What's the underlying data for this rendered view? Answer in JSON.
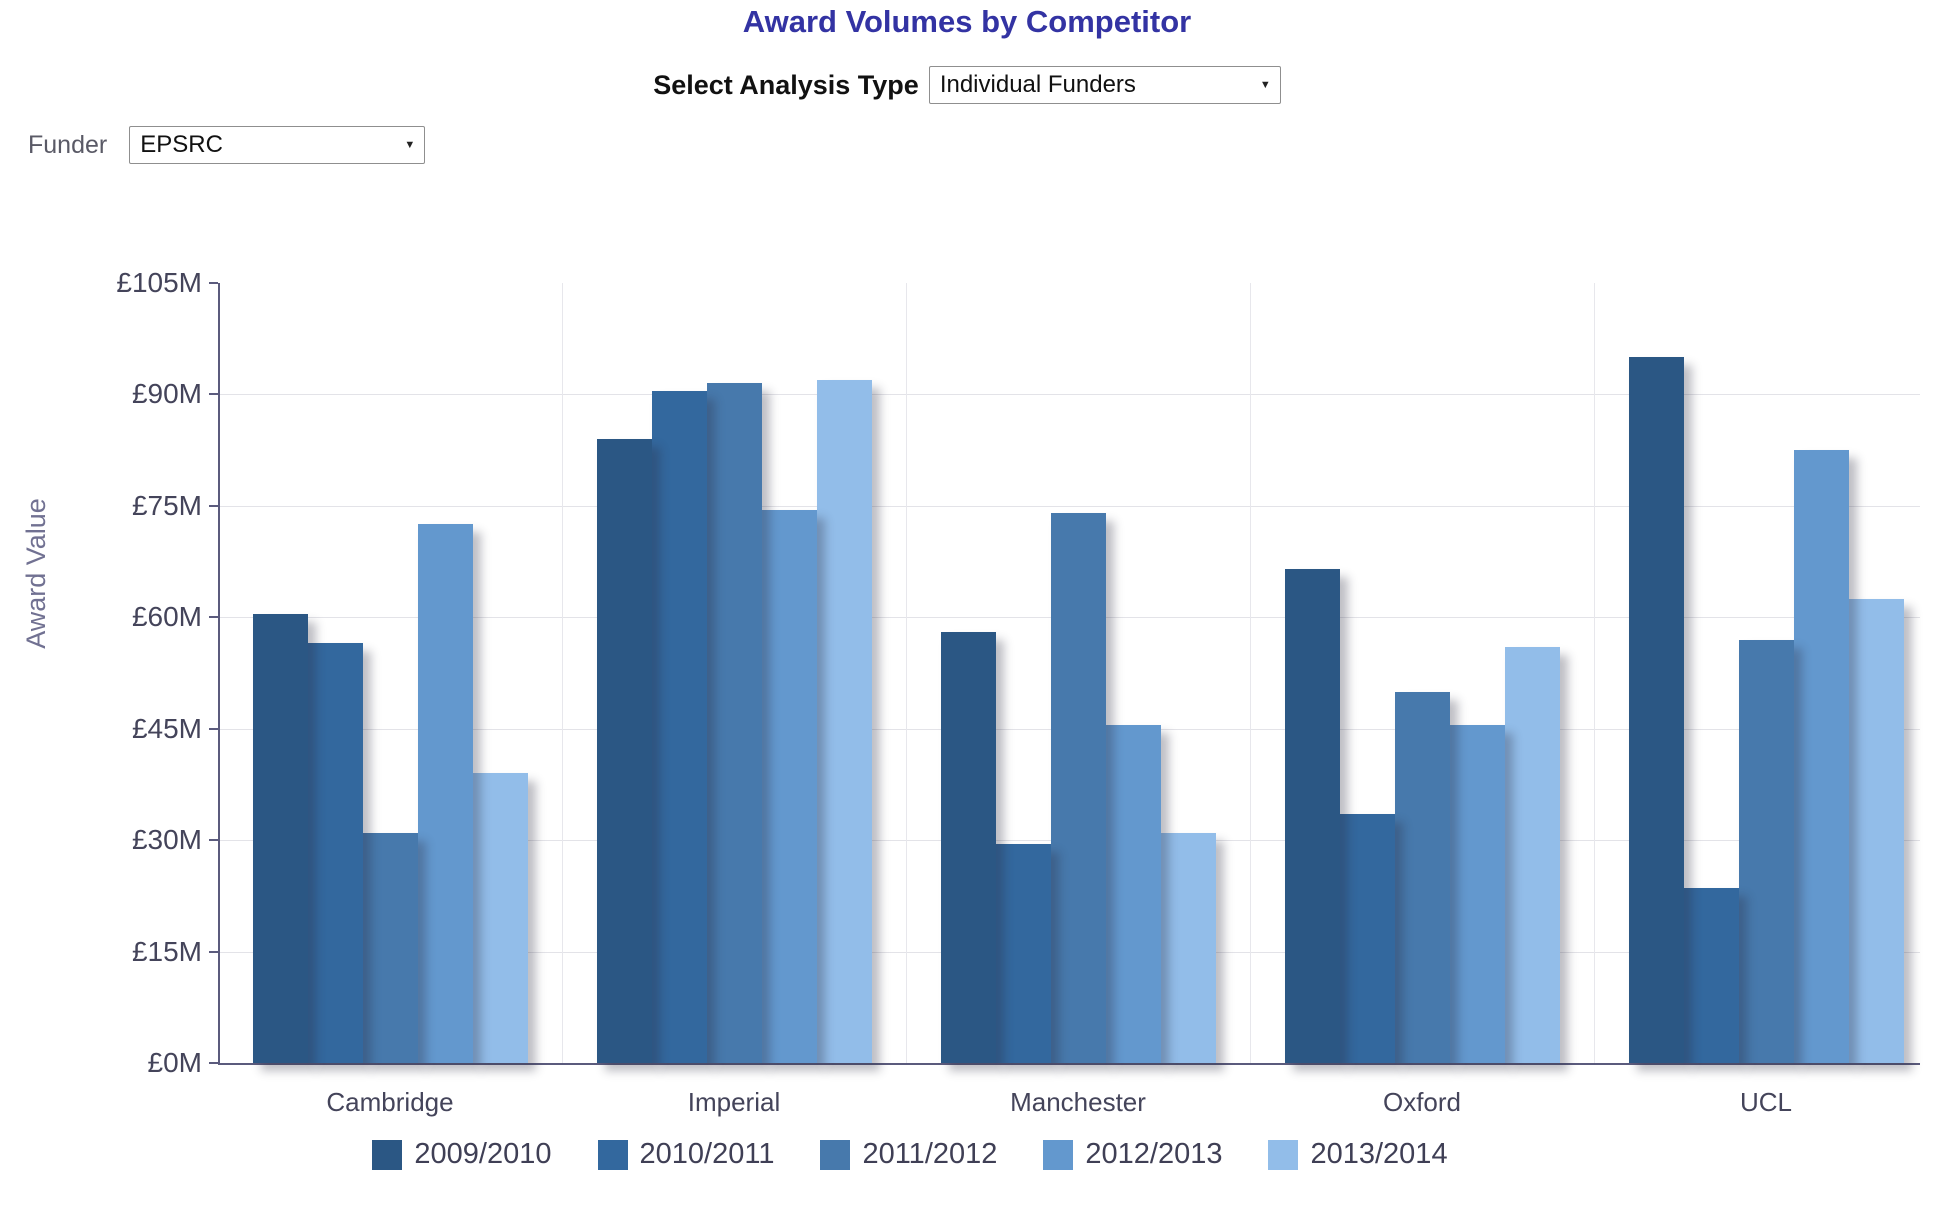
{
  "title": "Award Volumes by Competitor",
  "controls": {
    "analysis_type_label": "Select Analysis Type",
    "analysis_type_value": "Individual Funders",
    "funder_label": "Funder",
    "funder_value": "EPSRC"
  },
  "chart_data": {
    "type": "bar",
    "title": "Award Volumes by Competitor",
    "xlabel": "",
    "ylabel": "Award Value",
    "ylim": [
      0,
      105
    ],
    "ytick_step": 15,
    "ytick_labels": [
      "£0M",
      "£15M",
      "£30M",
      "£45M",
      "£60M",
      "£75M",
      "£90M",
      "£105M"
    ],
    "grid": true,
    "legend_position": "bottom",
    "categories": [
      "Cambridge",
      "Imperial",
      "Manchester",
      "Oxford",
      "UCL"
    ],
    "series": [
      {
        "name": "2009/2010",
        "color": "#2B5784",
        "values": [
          60.5,
          84,
          58,
          66.5,
          95
        ]
      },
      {
        "name": "2010/2011",
        "color": "#33689E",
        "values": [
          56.5,
          90.5,
          29.5,
          33.5,
          23.5
        ]
      },
      {
        "name": "2011/2012",
        "color": "#4779AC",
        "values": [
          31,
          91.5,
          74,
          50,
          57
        ]
      },
      {
        "name": "2012/2013",
        "color": "#6398CE",
        "values": [
          72.5,
          74.5,
          45.5,
          45.5,
          82.5
        ]
      },
      {
        "name": "2013/2014",
        "color": "#92BDE9",
        "values": [
          39,
          92,
          31,
          56,
          62.5
        ]
      }
    ]
  },
  "ui_colors": {
    "title_text": "#3333A3",
    "axis_line": "#5b5b7d",
    "gridline": "#e3e3e8",
    "tick_label": "#44445a",
    "legend_text": "#3f3f55"
  }
}
